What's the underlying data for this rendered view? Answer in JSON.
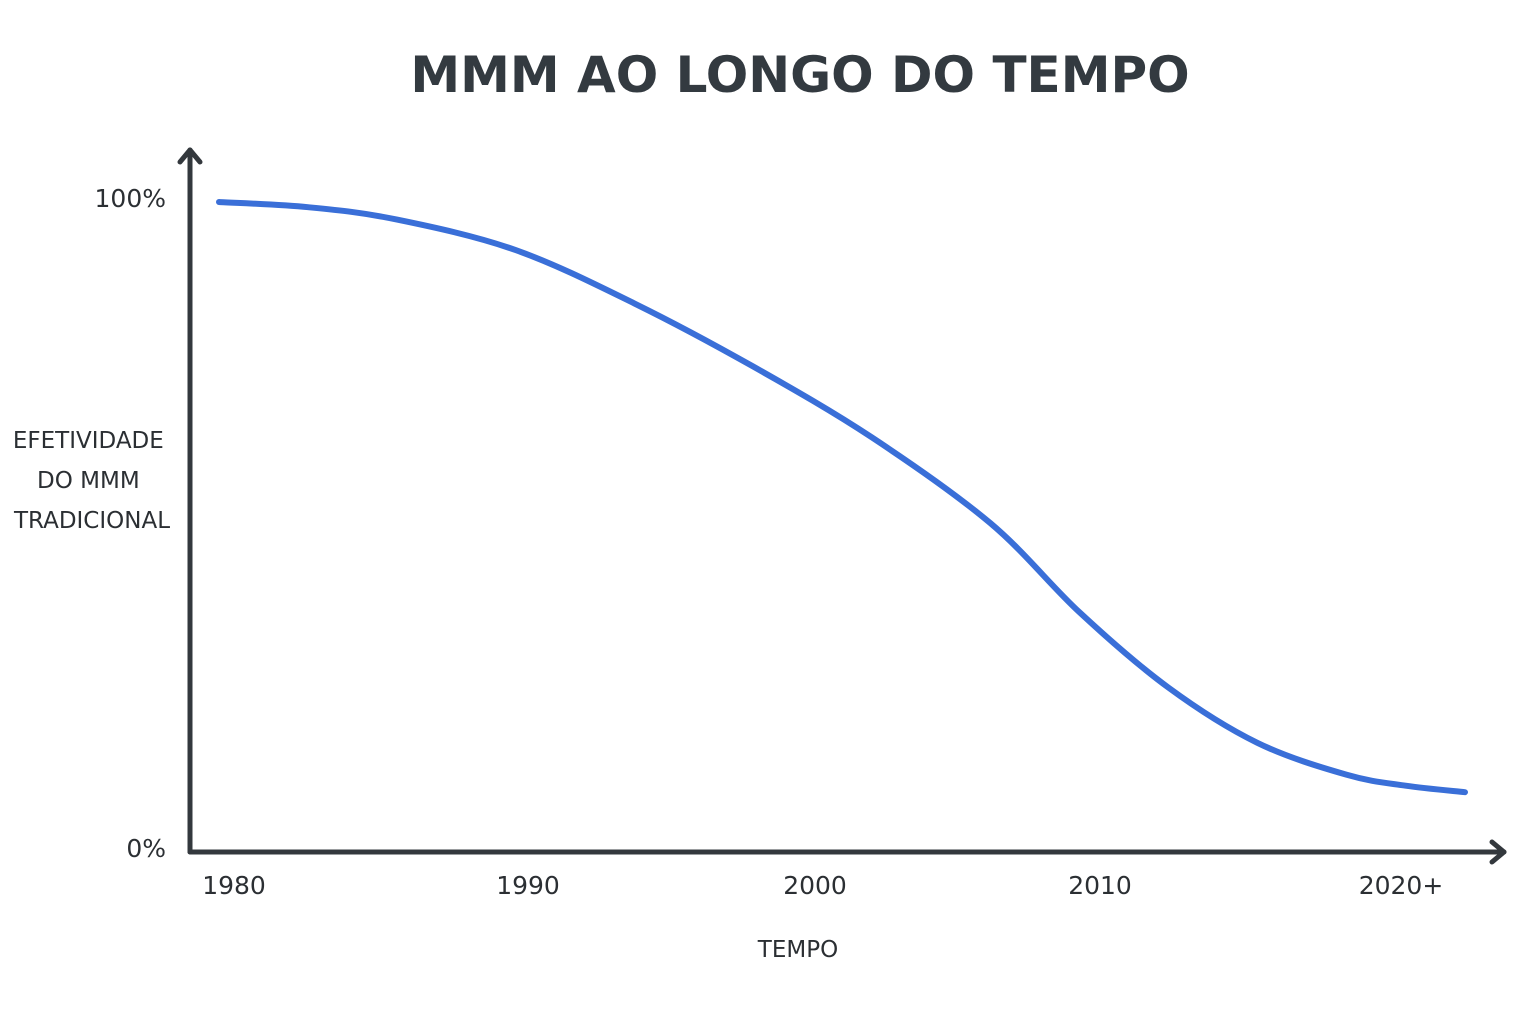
{
  "chart_data": {
    "type": "line",
    "title": "MMM AO LONGO DO TEMPO",
    "xlabel": "TEMPO",
    "ylabel_lines": [
      "EFETIVIDADE",
      "DO MMM",
      "TRADICIONAL"
    ],
    "x_ticks": [
      {
        "value": 1980,
        "label": "1980"
      },
      {
        "value": 1990,
        "label": "1990"
      },
      {
        "value": 2000,
        "label": "2000"
      },
      {
        "value": 2010,
        "label": "2010"
      },
      {
        "value": 2020,
        "label": "2020+"
      }
    ],
    "y_ticks": [
      {
        "value": 0,
        "label": "0%"
      },
      {
        "value": 100,
        "label": "100%"
      }
    ],
    "xlim": [
      1980,
      2022
    ],
    "ylim": [
      0,
      100
    ],
    "grid": false,
    "legend": "none",
    "colors": {
      "line": "#3a6fd8",
      "axis": "#33383d"
    },
    "series": [
      {
        "x": [
          1980,
          1983,
          1986,
          1990,
          1994,
          1998,
          2002,
          2006,
          2009,
          2012,
          2015,
          2018,
          2020,
          2022
        ],
        "y": [
          100,
          99.2,
          97.3,
          92.6,
          84.4,
          74.7,
          63.8,
          50.6,
          36.9,
          25.3,
          16.8,
          11.9,
          10.2,
          9.2
        ]
      }
    ]
  }
}
